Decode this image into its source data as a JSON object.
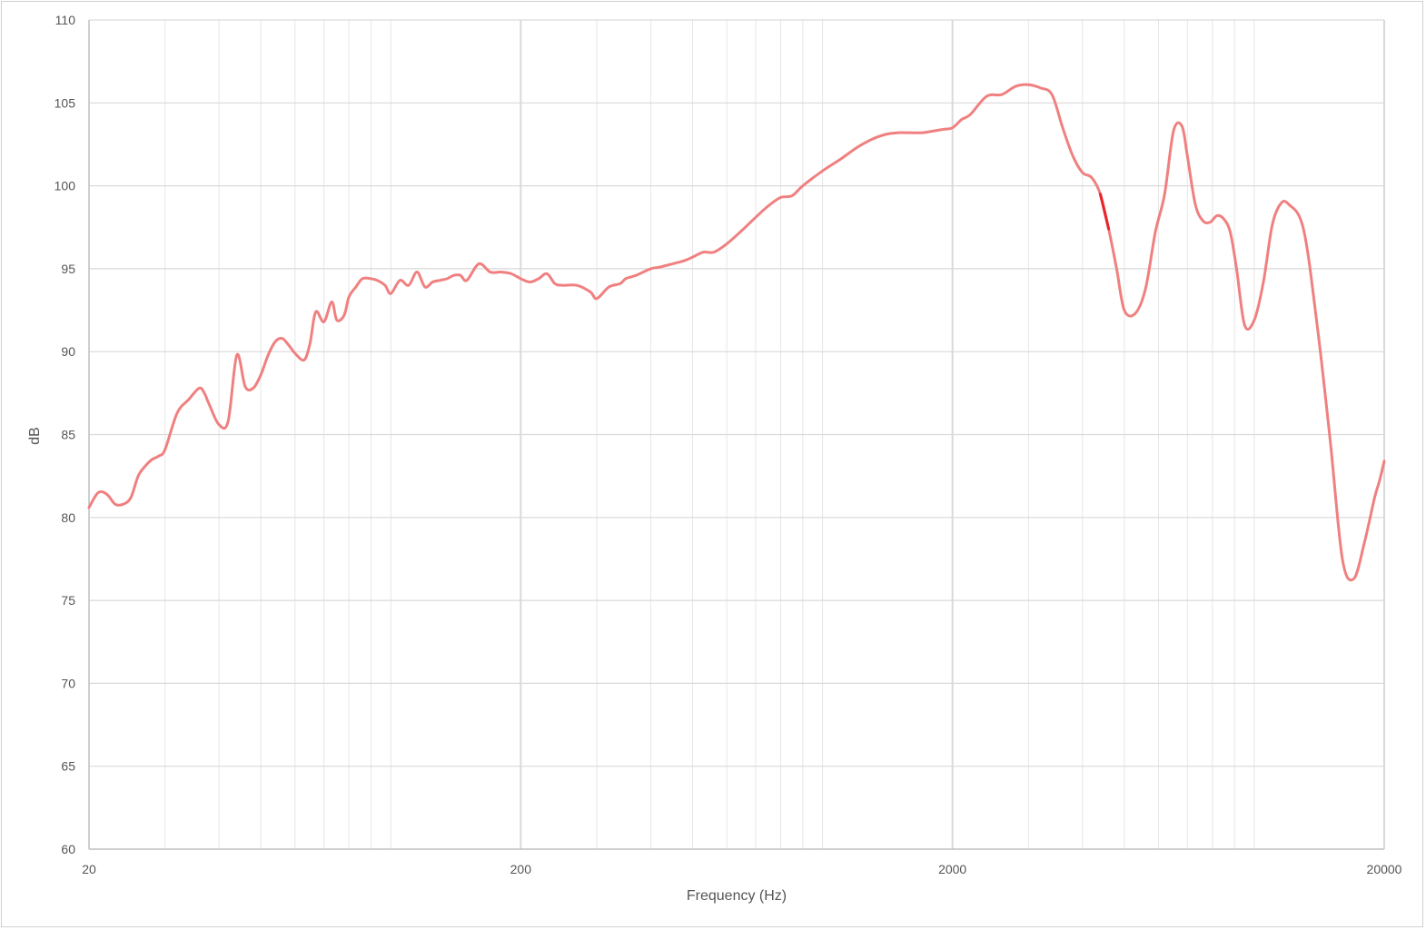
{
  "chart_data": {
    "type": "line",
    "title": "",
    "xlabel": "Frequency (Hz)",
    "ylabel": "dB",
    "x_scale": "log",
    "xlim": [
      20,
      20000
    ],
    "ylim": [
      60,
      110
    ],
    "x_ticks": [
      20,
      200,
      2000,
      20000
    ],
    "x_tick_labels": [
      "20",
      "200",
      "2000",
      "20000"
    ],
    "y_ticks": [
      60,
      65,
      70,
      75,
      80,
      85,
      90,
      95,
      100,
      105,
      110
    ],
    "y_tick_labels": [
      "60",
      "65",
      "70",
      "75",
      "80",
      "85",
      "90",
      "95",
      "100",
      "105",
      "110"
    ],
    "grid": true,
    "legend": "none",
    "colors": {
      "line": "#f08080",
      "grid": "#d9d9d9",
      "axis": "#bfbfbf"
    },
    "series": [
      {
        "x": [
          20,
          21,
          22,
          23,
          24,
          25,
          26,
          27,
          28,
          29,
          30,
          32,
          34,
          36,
          37,
          38,
          40,
          42,
          44,
          46,
          48,
          50,
          52,
          54,
          56,
          58,
          60,
          63,
          65,
          67,
          70,
          73,
          75,
          78,
          80,
          83,
          86,
          90,
          93,
          97,
          100,
          105,
          110,
          115,
          120,
          125,
          130,
          135,
          140,
          145,
          150,
          160,
          170,
          180,
          190,
          200,
          210,
          220,
          230,
          240,
          250,
          270,
          290,
          300,
          320,
          340,
          350,
          370,
          400,
          420,
          450,
          480,
          500,
          530,
          560,
          600,
          650,
          700,
          750,
          800,
          850,
          900,
          1000,
          1100,
          1200,
          1300,
          1400,
          1500,
          1600,
          1700,
          1800,
          1900,
          2000,
          2100,
          2200,
          2400,
          2600,
          2800,
          3000,
          3200,
          3400,
          3600,
          3800,
          4000,
          4200,
          4400,
          4600,
          4800,
          5000,
          5300,
          5600,
          5900,
          6200,
          6500,
          6800,
          7000,
          7300,
          7600,
          7900,
          8200,
          8500,
          8800,
          9100,
          9500,
          10000,
          10500,
          11000,
          11500,
          12000,
          13000,
          14000,
          15000,
          16000,
          17000,
          18000,
          19000,
          19500,
          20000
        ],
        "y": [
          80.6,
          81.5,
          81.4,
          80.8,
          80.8,
          81.2,
          82.5,
          83.1,
          83.5,
          83.7,
          84.1,
          86.3,
          87.1,
          87.8,
          87.5,
          86.8,
          85.6,
          85.8,
          89.8,
          87.9,
          87.8,
          88.6,
          89.8,
          90.6,
          90.8,
          90.4,
          89.9,
          89.5,
          90.5,
          92.4,
          91.8,
          93.0,
          91.9,
          92.2,
          93.3,
          93.9,
          94.4,
          94.4,
          94.3,
          94.0,
          93.5,
          94.3,
          94.0,
          94.8,
          93.9,
          94.2,
          94.3,
          94.4,
          94.6,
          94.6,
          94.3,
          95.3,
          94.8,
          94.8,
          94.7,
          94.4,
          94.2,
          94.4,
          94.7,
          94.1,
          94.0,
          94.0,
          93.6,
          93.2,
          93.9,
          94.1,
          94.4,
          94.6,
          95.0,
          95.1,
          95.3,
          95.5,
          95.7,
          96.0,
          96.0,
          96.5,
          97.3,
          98.1,
          98.8,
          99.3,
          99.4,
          100.0,
          100.9,
          101.6,
          102.3,
          102.8,
          103.1,
          103.2,
          103.2,
          103.2,
          103.3,
          103.4,
          103.5,
          104.0,
          104.3,
          105.4,
          105.5,
          106.0,
          106.1,
          105.9,
          105.5,
          103.5,
          101.8,
          100.8,
          100.5,
          99.5,
          97.4,
          95.0,
          92.5,
          92.3,
          93.8,
          97.2,
          99.5,
          103.3,
          103.6,
          101.8,
          98.9,
          97.9,
          97.8,
          98.2,
          98.0,
          97.2,
          95.0,
          91.6,
          91.9,
          94.2,
          97.6,
          98.9,
          98.9,
          97.4,
          91.5,
          84.6,
          77.5,
          76.3,
          78.5,
          81.2,
          82.2,
          83.4
        ],
        "highlight_x": [
          4300,
          4750
        ]
      }
    ]
  }
}
